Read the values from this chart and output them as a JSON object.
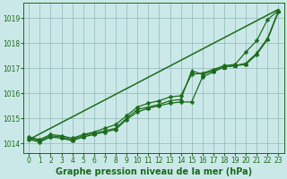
{
  "background_color": "#cbe8e8",
  "grid_color": "#9bbfbf",
  "line_color": "#1a6b1a",
  "title": "Graphe pression niveau de la mer (hPa)",
  "title_fontsize": 7.0,
  "tick_fontsize": 5.5,
  "xlim": [
    -0.5,
    23.5
  ],
  "ylim": [
    1013.6,
    1019.6
  ],
  "yticks": [
    1014,
    1015,
    1016,
    1017,
    1018,
    1019
  ],
  "xticks": [
    0,
    1,
    2,
    3,
    4,
    5,
    6,
    7,
    8,
    9,
    10,
    11,
    12,
    13,
    14,
    15,
    16,
    17,
    18,
    19,
    20,
    21,
    22,
    23
  ],
  "series": [
    {
      "x": [
        0,
        23
      ],
      "y": [
        1014.15,
        1019.35
      ],
      "marker": null,
      "markersize": 0,
      "linewidth": 1.1
    },
    {
      "x": [
        0,
        1,
        2,
        3,
        4,
        5,
        6,
        7,
        8,
        9,
        10,
        11,
        12,
        13,
        14,
        15,
        16,
        17,
        18,
        19,
        20,
        21,
        22,
        23
      ],
      "y": [
        1014.15,
        1014.05,
        1014.25,
        1014.2,
        1014.1,
        1014.25,
        1014.35,
        1014.45,
        1014.55,
        1014.95,
        1015.25,
        1015.4,
        1015.5,
        1015.6,
        1015.65,
        1015.65,
        1016.65,
        1016.85,
        1017.05,
        1017.1,
        1017.15,
        1017.55,
        1018.15,
        1019.25
      ],
      "marker": "P",
      "markersize": 2.8,
      "linewidth": 0.9
    },
    {
      "x": [
        0,
        1,
        2,
        3,
        4,
        5,
        6,
        7,
        8,
        9,
        10,
        11,
        12,
        13,
        14,
        15,
        16,
        17,
        18,
        19,
        20,
        21,
        22,
        23
      ],
      "y": [
        1014.2,
        1014.1,
        1014.3,
        1014.25,
        1014.15,
        1014.3,
        1014.4,
        1014.5,
        1014.6,
        1015.0,
        1015.35,
        1015.45,
        1015.55,
        1015.7,
        1015.75,
        1016.9,
        1016.75,
        1016.9,
        1017.05,
        1017.1,
        1017.2,
        1017.6,
        1018.2,
        1019.3
      ],
      "marker": "^",
      "markersize": 3.2,
      "linewidth": 0.9
    },
    {
      "x": [
        0,
        1,
        2,
        3,
        4,
        5,
        6,
        7,
        8,
        9,
        10,
        11,
        12,
        13,
        14,
        15,
        16,
        17,
        18,
        19,
        20,
        21,
        22,
        23
      ],
      "y": [
        1014.25,
        1014.15,
        1014.35,
        1014.3,
        1014.2,
        1014.35,
        1014.45,
        1014.6,
        1014.75,
        1015.1,
        1015.45,
        1015.6,
        1015.7,
        1015.85,
        1015.9,
        1016.75,
        1016.8,
        1016.95,
        1017.1,
        1017.15,
        1017.65,
        1018.1,
        1018.95,
        1019.3
      ],
      "marker": "P",
      "markersize": 2.8,
      "linewidth": 0.9
    }
  ]
}
